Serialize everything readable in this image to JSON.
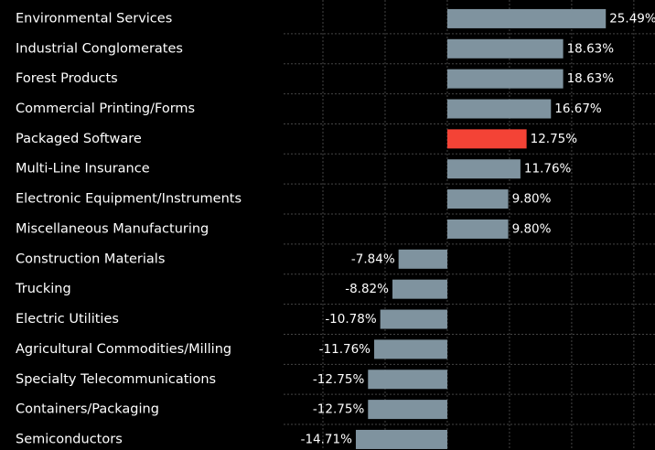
{
  "chart_data": {
    "type": "barh",
    "categories": [
      "Environmental Services",
      "Industrial Conglomerates",
      "Forest Products",
      "Commercial Printing/Forms",
      "Packaged Software",
      "Multi-Line Insurance",
      "Electronic Equipment/Instruments",
      "Miscellaneous Manufacturing",
      "Construction Materials",
      "Trucking",
      "Electric Utilities",
      "Agricultural Commodities/Milling",
      "Specialty Telecommunications",
      "Containers/Packaging",
      "Semiconductors"
    ],
    "values": [
      25.49,
      18.63,
      18.63,
      16.67,
      12.75,
      11.76,
      9.8,
      9.8,
      -7.84,
      -8.82,
      -10.78,
      -11.76,
      -12.75,
      -12.75,
      -14.71
    ],
    "value_labels": [
      "25.49%",
      "18.63%",
      "18.63%",
      "16.67%",
      "12.75%",
      "11.76%",
      "9.80%",
      "9.80%",
      "-7.84%",
      "-8.82%",
      "-10.78%",
      "-11.76%",
      "-12.75%",
      "-12.75%",
      "-14.71%"
    ],
    "colors": [
      "#7f939f",
      "#7f939f",
      "#7f939f",
      "#7f939f",
      "#f44336",
      "#7f939f",
      "#7f939f",
      "#7f939f",
      "#7f939f",
      "#7f939f",
      "#7f939f",
      "#7f939f",
      "#7f939f",
      "#7f939f",
      "#7f939f"
    ],
    "xlim": [
      -20,
      33.4
    ],
    "xticks": [
      -20,
      -10,
      0,
      10,
      20,
      30
    ],
    "grid": true
  }
}
